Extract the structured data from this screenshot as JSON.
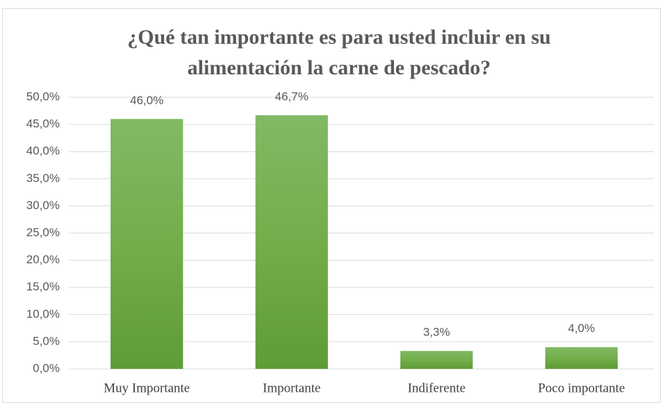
{
  "chart_data": {
    "type": "bar",
    "title": "¿Qué tan importante es para usted incluir en su alimentación la carne de pescado?",
    "categories": [
      "Muy Importante",
      "Importante",
      "Indiferente",
      "Poco importante"
    ],
    "values": [
      46.0,
      46.7,
      3.3,
      4.0
    ],
    "value_labels": [
      "46,0%",
      "46,7%",
      "3,3%",
      "4,0%"
    ],
    "color": "#70ad47",
    "ylim": [
      0,
      50
    ],
    "yticks": [
      {
        "value": 0,
        "label": "0,0%"
      },
      {
        "value": 5,
        "label": "5,0%"
      },
      {
        "value": 10,
        "label": "10,0%"
      },
      {
        "value": 15,
        "label": "15,0%"
      },
      {
        "value": 20,
        "label": "20,0%"
      },
      {
        "value": 25,
        "label": "25,0%"
      },
      {
        "value": 30,
        "label": "30,0%"
      },
      {
        "value": 35,
        "label": "35,0%"
      },
      {
        "value": 40,
        "label": "40,0%"
      },
      {
        "value": 45,
        "label": "45,0%"
      },
      {
        "value": 50,
        "label": "50,0%"
      }
    ],
    "grid": true
  }
}
